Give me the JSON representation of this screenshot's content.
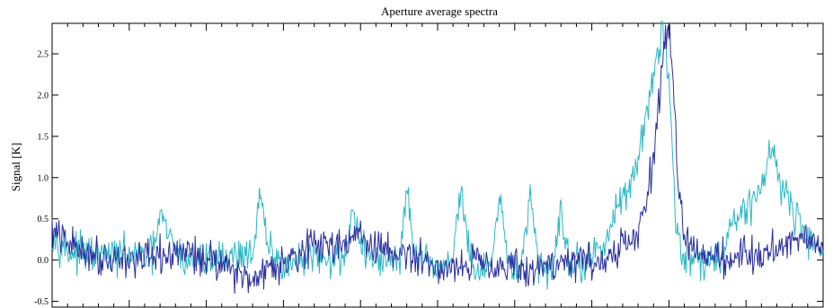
{
  "chart_data": {
    "type": "line",
    "title": "Aperture average spectra",
    "ylabel": "Signal [K]",
    "xlabel": "",
    "ylim": [
      -0.57,
      2.87
    ],
    "yticks": [
      -0.5,
      0.0,
      0.5,
      1.0,
      1.5,
      2.0,
      2.5
    ],
    "ytick_labels": [
      "-0.5",
      "0.0",
      "0.5",
      "1.0",
      "1.5",
      "2.0",
      "2.5"
    ],
    "xlim": [
      0,
      1000
    ],
    "grid": false,
    "legend": "none",
    "series": [
      {
        "color": "#2eb8c4",
        "x": [
          0,
          20,
          60,
          130,
          140,
          150,
          170,
          200,
          230,
          260,
          270,
          280,
          290,
          310,
          340,
          380,
          390,
          400,
          420,
          450,
          460,
          470,
          480,
          500,
          520,
          530,
          540,
          550,
          570,
          580,
          590,
          600,
          610,
          620,
          630,
          640,
          650,
          660,
          670,
          690,
          700,
          720,
          760,
          780,
          790,
          795,
          800,
          805,
          810,
          820,
          840,
          860,
          870,
          880,
          900,
          920,
          930,
          935,
          940,
          960,
          980,
          995
        ],
        "y": [
          0.35,
          0.1,
          0.05,
          0.05,
          0.55,
          0.3,
          0.0,
          0.0,
          0.05,
          0.1,
          0.75,
          0.15,
          0.0,
          -0.05,
          0.0,
          0.05,
          0.65,
          0.15,
          0.0,
          0.0,
          0.8,
          0.1,
          -0.05,
          -0.1,
          0.05,
          0.9,
          0.1,
          -0.15,
          -0.1,
          0.75,
          0.0,
          -0.1,
          0.0,
          0.75,
          0.0,
          -0.15,
          -0.05,
          0.65,
          0.0,
          -0.05,
          0.0,
          0.3,
          1.2,
          2.2,
          2.7,
          2.7,
          2.2,
          1.2,
          0.35,
          0.05,
          0.0,
          0.0,
          0.1,
          0.45,
          0.6,
          0.9,
          1.3,
          1.35,
          1.1,
          0.6,
          0.25,
          0.2
        ]
      },
      {
        "color": "#2b2f9e",
        "x": [
          0,
          20,
          60,
          130,
          170,
          230,
          250,
          300,
          330,
          370,
          390,
          420,
          480,
          500,
          560,
          620,
          640,
          700,
          720,
          760,
          780,
          790,
          795,
          800,
          805,
          810,
          820,
          840,
          860,
          880,
          900,
          920,
          940,
          960,
          980,
          995
        ],
        "y": [
          0.35,
          0.2,
          0.05,
          0.0,
          0.1,
          -0.05,
          -0.25,
          0.0,
          0.15,
          0.2,
          0.3,
          0.15,
          0.0,
          -0.1,
          0.0,
          -0.15,
          -0.05,
          0.0,
          0.0,
          0.3,
          1.2,
          2.2,
          2.7,
          2.7,
          2.2,
          1.2,
          0.3,
          0.1,
          0.05,
          0.0,
          0.1,
          0.05,
          0.15,
          0.25,
          0.3,
          0.2
        ]
      }
    ]
  }
}
